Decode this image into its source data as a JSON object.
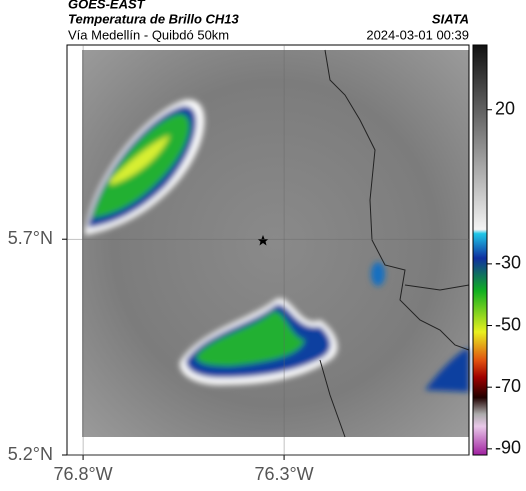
{
  "header": {
    "source": "GOES-EAST",
    "title": "Temperatura de Brillo CH13",
    "org": "SIATA",
    "subtitle": "Vía Medellín - Quibdó 50km",
    "datetime": "2024-03-01 00:39"
  },
  "map": {
    "xlim": [
      -76.84,
      -75.84
    ],
    "ylim": [
      5.2,
      6.15
    ],
    "xticks": [
      {
        "value": -76.8,
        "label": "76.8°W"
      },
      {
        "value": -76.3,
        "label": "76.3°W"
      }
    ],
    "yticks": [
      {
        "value": 5.2,
        "label": "5.2°N"
      },
      {
        "value": 5.7,
        "label": "5.7°N"
      }
    ]
  },
  "colorbar": {
    "lim": [
      41,
      -92
    ],
    "ticks": [
      20,
      -30,
      -50,
      -70,
      -90
    ]
  }
}
